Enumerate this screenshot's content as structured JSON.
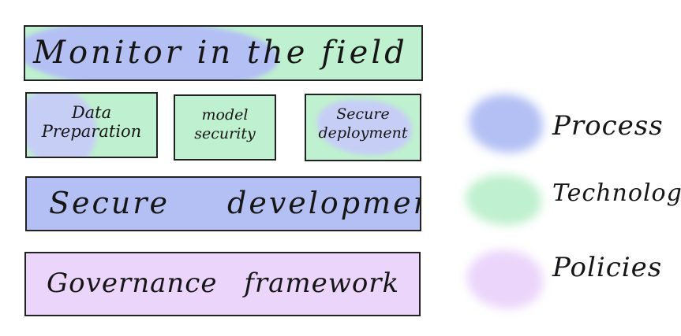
{
  "layers": {
    "monitor": "Monitor in the field",
    "data_preparation": "Data Preparation",
    "model_security": "model security",
    "secure_deployment": "Secure deployment",
    "secure_development": "Secure development",
    "governance": "Governance framework"
  },
  "legend": {
    "process": "Process",
    "technology": "Technology",
    "policies": "Policies"
  },
  "colors": {
    "process": "#b4c0f4",
    "technology": "#bff0cf",
    "policies": "#ebd5fa"
  }
}
